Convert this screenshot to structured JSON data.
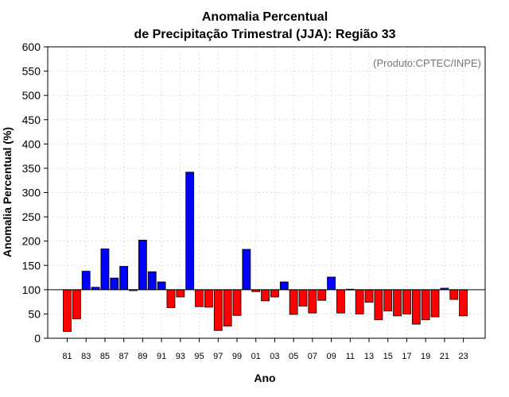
{
  "chart_data": {
    "type": "bar",
    "title_line1": "Anomalia Percentual",
    "title_line2": "de Precipitação Trimestral (JJA): Região 33",
    "xlabel": "Ano",
    "ylabel": "Anomalia Percentual (%)",
    "credit": "(Produto:CPTEC/INPE)",
    "ylim": [
      0,
      600
    ],
    "yticks": [
      0,
      50,
      100,
      150,
      200,
      250,
      300,
      350,
      400,
      450,
      500,
      550,
      600
    ],
    "baseline": 100,
    "grid": true,
    "colors": {
      "above": "#0000ff",
      "below": "#ff0000",
      "edge": "#000000",
      "grid": "#dddddd"
    },
    "categories": [
      "81",
      "82",
      "83",
      "84",
      "85",
      "86",
      "87",
      "88",
      "89",
      "90",
      "91",
      "92",
      "93",
      "94",
      "95",
      "96",
      "97",
      "98",
      "99",
      "00",
      "01",
      "02",
      "03",
      "04",
      "05",
      "06",
      "07",
      "08",
      "09",
      "10",
      "11",
      "12",
      "13",
      "14",
      "15",
      "16",
      "17",
      "18",
      "19",
      "20",
      "21",
      "22",
      "23"
    ],
    "xtick_labels": [
      "81",
      "83",
      "85",
      "87",
      "89",
      "91",
      "93",
      "95",
      "97",
      "99",
      "01",
      "03",
      "05",
      "07",
      "09",
      "11",
      "13",
      "15",
      "17",
      "19",
      "21",
      "23"
    ],
    "values": [
      14,
      40,
      138,
      105,
      184,
      124,
      148,
      98,
      202,
      137,
      116,
      63,
      85,
      342,
      65,
      64,
      16,
      25,
      47,
      183,
      96,
      77,
      85,
      116,
      49,
      66,
      52,
      78,
      126,
      52,
      101,
      50,
      74,
      38,
      56,
      46,
      50,
      29,
      38,
      44,
      103,
      80,
      46
    ]
  }
}
